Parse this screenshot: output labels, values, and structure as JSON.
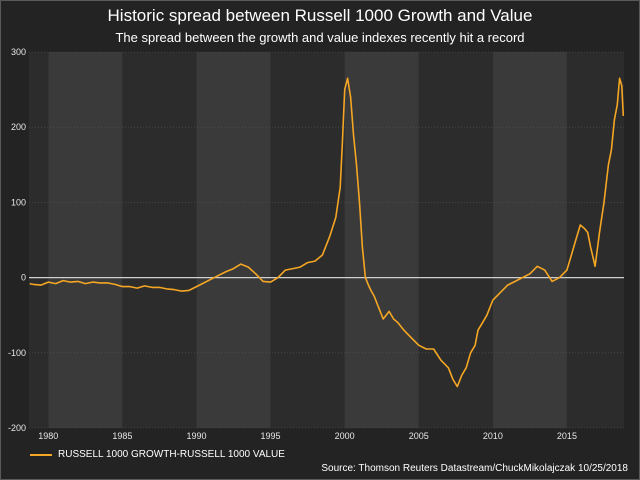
{
  "title": "Historic spread between Russell 1000 Growth and Value",
  "subtitle": "The spread between the growth and value indexes recently hit a record",
  "source": "Source: Thomson Reuters Datastream/ChuckMikolajczak 10/25/2018",
  "colors": {
    "background": "#232323",
    "plot_band_dark": "#2c2c2c",
    "plot_band_light": "#3a3a3a",
    "line": "#f5a623",
    "zero_line": "#cfcfcf"
  },
  "chart_data": {
    "type": "line",
    "title": "Historic spread between Russell 1000 Growth and Value",
    "subtitle": "The spread between the growth and value indexes recently hit a record",
    "xlabel": "",
    "ylabel": "",
    "xlim": [
      1978.7,
      2018.85
    ],
    "ylim": [
      -200,
      300
    ],
    "x_ticks": [
      1980,
      1985,
      1990,
      1995,
      2000,
      2005,
      2010,
      2015
    ],
    "x_tick_labels": [
      "1980",
      "1985",
      "1990",
      "1995",
      "2000",
      "2005",
      "2010",
      "2015"
    ],
    "y_ticks": [
      -200,
      -100,
      0,
      100,
      200,
      300
    ],
    "y_tick_labels": [
      "-200",
      "-100",
      "0",
      "100",
      "200",
      "300"
    ],
    "grid": true,
    "legend": "bottom-left",
    "series": [
      {
        "name": "RUSSELL 1000 GROWTH-RUSSELL 1000 VALUE",
        "x": [
          1978.75,
          1979.0,
          1979.5,
          1980.0,
          1980.5,
          1981.0,
          1981.5,
          1982.0,
          1982.5,
          1983.0,
          1983.5,
          1984.0,
          1984.5,
          1985.0,
          1985.5,
          1986.0,
          1986.5,
          1987.0,
          1987.5,
          1988.0,
          1988.5,
          1989.0,
          1989.5,
          1990.0,
          1990.5,
          1991.0,
          1991.5,
          1992.0,
          1992.5,
          1993.0,
          1993.5,
          1994.0,
          1994.5,
          1995.0,
          1995.5,
          1996.0,
          1996.5,
          1997.0,
          1997.5,
          1998.0,
          1998.5,
          1999.0,
          1999.4,
          1999.7,
          1999.85,
          2000.0,
          2000.2,
          2000.4,
          2000.6,
          2000.8,
          2001.0,
          2001.2,
          2001.4,
          2001.6,
          2001.8,
          2002.0,
          2002.3,
          2002.6,
          2003.0,
          2003.3,
          2003.6,
          2004.0,
          2004.5,
          2005.0,
          2005.5,
          2006.0,
          2006.5,
          2007.0,
          2007.3,
          2007.6,
          2007.9,
          2008.2,
          2008.5,
          2008.8,
          2009.0,
          2009.3,
          2009.6,
          2010.0,
          2010.5,
          2011.0,
          2011.5,
          2012.0,
          2012.5,
          2013.0,
          2013.5,
          2014.0,
          2014.5,
          2015.0,
          2015.3,
          2015.6,
          2015.9,
          2016.2,
          2016.4,
          2016.6,
          2016.9,
          2017.2,
          2017.5,
          2017.8,
          2018.0,
          2018.2,
          2018.4,
          2018.55,
          2018.7,
          2018.8
        ],
        "y": [
          -8,
          -9,
          -10,
          -6,
          -8,
          -4,
          -6,
          -5,
          -8,
          -6,
          -7,
          -7,
          -9,
          -12,
          -12,
          -14,
          -11,
          -13,
          -13,
          -15,
          -16,
          -18,
          -17,
          -12,
          -7,
          -2,
          3,
          8,
          12,
          18,
          14,
          5,
          -5,
          -6,
          0,
          10,
          12,
          14,
          20,
          22,
          30,
          55,
          80,
          120,
          180,
          250,
          265,
          240,
          190,
          150,
          100,
          40,
          0,
          -10,
          -18,
          -25,
          -40,
          -55,
          -45,
          -55,
          -60,
          -70,
          -80,
          -90,
          -95,
          -95,
          -110,
          -120,
          -135,
          -145,
          -130,
          -120,
          -100,
          -90,
          -70,
          -60,
          -50,
          -30,
          -20,
          -10,
          -5,
          0,
          5,
          15,
          10,
          -5,
          0,
          10,
          30,
          50,
          70,
          65,
          60,
          40,
          15,
          60,
          100,
          150,
          170,
          210,
          230,
          265,
          255,
          215
        ]
      }
    ]
  }
}
